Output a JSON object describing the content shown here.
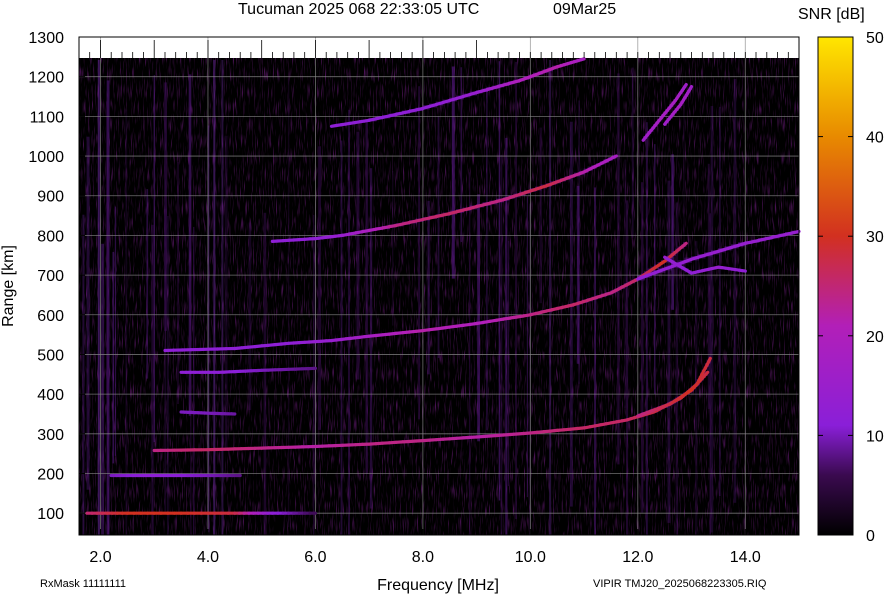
{
  "header": {
    "title": "Tucuman 2025 068 22:33:05 UTC",
    "date": "09Mar25"
  },
  "footer": {
    "rx_mask": "RxMask 11111111",
    "file_label": "VIPIR  TMJ20_2025068223305.RIQ"
  },
  "chart_data": {
    "type": "heatmap",
    "xlabel": "Frequency [MHz]",
    "ylabel": "Range [km]",
    "xlim": [
      1.6,
      15.0
    ],
    "ylim": [
      45,
      1300
    ],
    "x_ticks": [
      2.0,
      4.0,
      6.0,
      8.0,
      10.0,
      12.0,
      14.0
    ],
    "x_tick_labels": [
      "2.0",
      "4.0",
      "6.0",
      "8.0",
      "10.0",
      "12.0",
      "14.0"
    ],
    "y_ticks": [
      100,
      200,
      300,
      400,
      500,
      600,
      700,
      800,
      900,
      1000,
      1100,
      1200,
      1300
    ],
    "y_tick_labels": [
      "100",
      "200",
      "300",
      "400",
      "500",
      "600",
      "700",
      "800",
      "900",
      "1000",
      "1100",
      "1200",
      "1300"
    ],
    "grid": true,
    "colorbar": {
      "label": "SNR [dB]",
      "range": [
        0,
        50
      ],
      "ticks": [
        0,
        10,
        20,
        30,
        40,
        50
      ],
      "tick_labels": [
        "0",
        "10",
        "20",
        "30",
        "40",
        "50"
      ],
      "colors": [
        "#000000",
        "#3a0a4f",
        "#8a1fd8",
        "#b21fb8",
        "#d23020",
        "#e88a00",
        "#ffe600"
      ]
    },
    "traces": [
      {
        "points": [
          [
            1.75,
            100,
            25
          ],
          [
            2.5,
            100,
            30
          ],
          [
            3.5,
            100,
            30
          ],
          [
            4.5,
            100,
            28
          ],
          [
            5.2,
            100,
            12
          ],
          [
            6.0,
            100,
            6
          ]
        ]
      },
      {
        "points": [
          [
            2.2,
            195,
            10
          ],
          [
            3.0,
            195,
            12
          ],
          [
            4.0,
            195,
            10
          ],
          [
            4.6,
            195,
            8
          ]
        ]
      },
      {
        "points": [
          [
            3.0,
            258,
            24
          ],
          [
            4.0,
            260,
            26
          ],
          [
            5.0,
            264,
            24
          ],
          [
            6.0,
            268,
            22
          ],
          [
            7.0,
            274,
            24
          ],
          [
            8.0,
            283,
            24
          ],
          [
            9.0,
            292,
            22
          ],
          [
            10.0,
            302,
            24
          ],
          [
            11.0,
            315,
            26
          ],
          [
            11.8,
            335,
            26
          ],
          [
            12.3,
            355,
            28
          ],
          [
            12.8,
            390,
            30
          ],
          [
            13.1,
            425,
            30
          ],
          [
            13.35,
            490,
            28
          ]
        ]
      },
      {
        "points": [
          [
            12.0,
            345,
            24
          ],
          [
            12.6,
            375,
            28
          ],
          [
            13.0,
            410,
            30
          ],
          [
            13.3,
            455,
            28
          ]
        ]
      },
      {
        "points": [
          [
            3.5,
            355,
            10
          ],
          [
            4.0,
            352,
            10
          ],
          [
            4.5,
            350,
            9
          ]
        ]
      },
      {
        "points": [
          [
            3.5,
            455,
            12
          ],
          [
            4.2,
            455,
            12
          ],
          [
            5.0,
            460,
            10
          ],
          [
            6.0,
            465,
            8
          ]
        ]
      },
      {
        "points": [
          [
            3.2,
            510,
            12
          ],
          [
            4.5,
            515,
            12
          ],
          [
            5.5,
            528,
            12
          ],
          [
            6.3,
            535,
            14
          ],
          [
            7.0,
            546,
            18
          ],
          [
            8.0,
            560,
            22
          ],
          [
            9.0,
            578,
            20
          ],
          [
            10.0,
            600,
            24
          ],
          [
            10.8,
            625,
            26
          ],
          [
            11.5,
            655,
            24
          ],
          [
            12.0,
            690,
            26
          ],
          [
            12.5,
            735,
            30
          ],
          [
            12.9,
            780,
            24
          ]
        ]
      },
      {
        "points": [
          [
            5.2,
            785,
            12
          ],
          [
            6.0,
            792,
            12
          ],
          [
            6.5,
            800,
            14
          ],
          [
            7.5,
            825,
            24
          ],
          [
            8.5,
            855,
            26
          ],
          [
            9.5,
            890,
            24
          ],
          [
            10.3,
            925,
            28
          ],
          [
            11.0,
            960,
            22
          ],
          [
            11.6,
            1000,
            18
          ]
        ]
      },
      {
        "points": [
          [
            6.3,
            1075,
            12
          ],
          [
            7.0,
            1090,
            12
          ],
          [
            8.0,
            1120,
            12
          ],
          [
            9.0,
            1160,
            14
          ],
          [
            9.8,
            1190,
            20
          ],
          [
            10.5,
            1225,
            22
          ],
          [
            11.0,
            1245,
            18
          ]
        ]
      },
      {
        "points": [
          [
            12.1,
            1040,
            16
          ],
          [
            12.4,
            1090,
            18
          ],
          [
            12.7,
            1140,
            18
          ],
          [
            12.9,
            1180,
            16
          ]
        ]
      },
      {
        "points": [
          [
            12.5,
            1080,
            16
          ],
          [
            12.8,
            1130,
            18
          ],
          [
            13.0,
            1175,
            16
          ]
        ]
      },
      {
        "points": [
          [
            12.0,
            690,
            12
          ],
          [
            13.0,
            740,
            14
          ],
          [
            14.0,
            780,
            14
          ],
          [
            15.0,
            810,
            14
          ]
        ]
      },
      {
        "points": [
          [
            12.5,
            745,
            14
          ],
          [
            13.0,
            705,
            12
          ],
          [
            13.5,
            720,
            14
          ],
          [
            14.0,
            710,
            12
          ]
        ]
      }
    ]
  }
}
